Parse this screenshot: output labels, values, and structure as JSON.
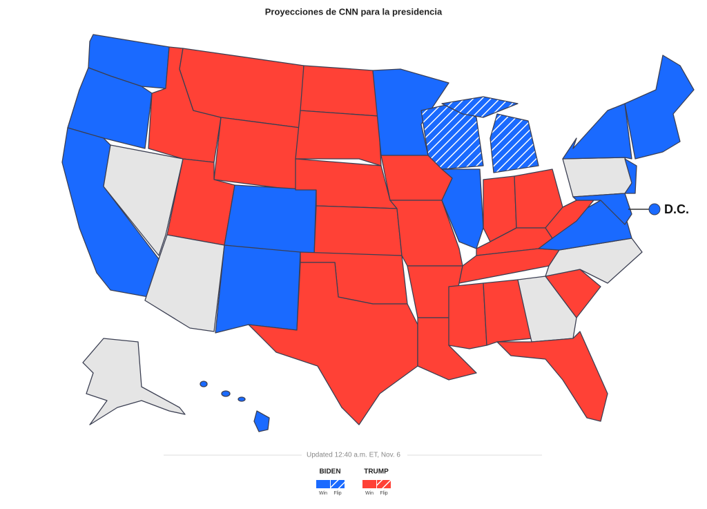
{
  "header": {
    "title": "Proyecciones de CNN para la presidencia"
  },
  "map": {
    "dc_label": "D.C.",
    "updated": "Updated 12:40 a.m. ET, Nov. 6"
  },
  "legend": {
    "items": [
      {
        "name": "BIDEN",
        "color": "#1a6aff",
        "win": "Win",
        "flip": "Flip"
      },
      {
        "name": "TRUMP",
        "color": "#ff4136",
        "win": "Win",
        "flip": "Flip"
      }
    ]
  }
}
